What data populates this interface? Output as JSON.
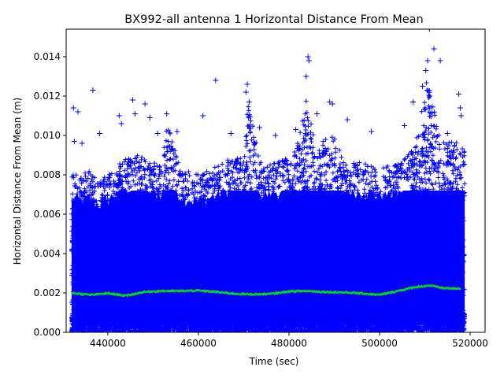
{
  "chart_data": {
    "type": "scatter",
    "title": "BX992-all antenna 1 Horizontal Distance From Mean",
    "xlabel": "Time (sec)",
    "ylabel": "Horizontal Distance From Mean (m)",
    "xlim": [
      430800,
      523300
    ],
    "ylim": [
      0.0,
      0.0154
    ],
    "x_ticks": [
      440000,
      460000,
      480000,
      500000,
      520000
    ],
    "x_tick_labels": [
      "440000",
      "460000",
      "480000",
      "500000",
      "520000"
    ],
    "y_ticks": [
      0.0,
      0.002,
      0.004,
      0.006,
      0.008,
      0.01,
      0.012,
      0.014
    ],
    "y_tick_labels": [
      "0.000",
      "0.002",
      "0.004",
      "0.006",
      "0.008",
      "0.010",
      "0.012",
      "0.014"
    ],
    "grid": false,
    "legend": "none",
    "series": [
      {
        "marker": "plus",
        "color": "#0000ff",
        "x_range": [
          432000,
          518800
        ],
        "envelope": {
          "x": [
            432000,
            434000,
            436000,
            438000,
            440000,
            443000,
            446000,
            449000,
            452000,
            453000,
            456000,
            460000,
            463000,
            466000,
            470000,
            471000,
            474000,
            478000,
            481000,
            484000,
            486000,
            489000,
            492000,
            496000,
            500000,
            504000,
            507000,
            509000,
            510500,
            511500,
            514000,
            516000,
            518800
          ],
          "y": [
            0.0082,
            0.008,
            0.0082,
            0.0078,
            0.0081,
            0.0087,
            0.0091,
            0.0087,
            0.0085,
            0.0108,
            0.0083,
            0.008,
            0.0083,
            0.0087,
            0.0092,
            0.0117,
            0.0084,
            0.0087,
            0.009,
            0.012,
            0.0092,
            0.0104,
            0.0088,
            0.0086,
            0.0084,
            0.0086,
            0.0092,
            0.0108,
            0.013,
            0.0118,
            0.0097,
            0.0098,
            0.0093
          ]
        },
        "outliers": [
          [
            432400,
            0.0114
          ],
          [
            432600,
            0.0097
          ],
          [
            433400,
            0.0112
          ],
          [
            434300,
            0.0096
          ],
          [
            436700,
            0.0123
          ],
          [
            438200,
            0.0101
          ],
          [
            442500,
            0.011
          ],
          [
            443000,
            0.0106
          ],
          [
            445500,
            0.0118
          ],
          [
            446000,
            0.0111
          ],
          [
            448200,
            0.0116
          ],
          [
            449300,
            0.0109
          ],
          [
            451000,
            0.0101
          ],
          [
            453000,
            0.0111
          ],
          [
            455300,
            0.0102
          ],
          [
            461000,
            0.011
          ],
          [
            463800,
            0.0128
          ],
          [
            467200,
            0.0101
          ],
          [
            470500,
            0.0122
          ],
          [
            470800,
            0.0126
          ],
          [
            471200,
            0.0117
          ],
          [
            473500,
            0.0104
          ],
          [
            477000,
            0.01
          ],
          [
            481500,
            0.0103
          ],
          [
            483800,
            0.013
          ],
          [
            484200,
            0.014
          ],
          [
            484400,
            0.0138
          ],
          [
            486200,
            0.0111
          ],
          [
            489000,
            0.0117
          ],
          [
            489600,
            0.0116
          ],
          [
            492900,
            0.0108
          ],
          [
            498200,
            0.0102
          ],
          [
            505500,
            0.0105
          ],
          [
            507400,
            0.0117
          ],
          [
            509500,
            0.0125
          ],
          [
            510200,
            0.0133
          ],
          [
            510600,
            0.0138
          ],
          [
            511000,
            0.0154
          ],
          [
            512000,
            0.0144
          ],
          [
            513400,
            0.0138
          ],
          [
            515000,
            0.0101
          ],
          [
            517500,
            0.0121
          ],
          [
            517800,
            0.0114
          ],
          [
            518000,
            0.011
          ]
        ]
      },
      {
        "marker": "line",
        "color": "#00e000",
        "x": [
          432000,
          436000,
          440000,
          444000,
          448000,
          452000,
          456000,
          460000,
          464000,
          468000,
          472000,
          476000,
          480000,
          484000,
          488000,
          492000,
          496000,
          500000,
          504000,
          508000,
          511000,
          514000,
          518000
        ],
        "y": [
          0.002,
          0.0019,
          0.00198,
          0.00186,
          0.00205,
          0.0021,
          0.0021,
          0.00212,
          0.00205,
          0.00196,
          0.00193,
          0.00195,
          0.00208,
          0.0021,
          0.00205,
          0.00203,
          0.00198,
          0.0019,
          0.0021,
          0.0023,
          0.00238,
          0.00225,
          0.0022
        ]
      }
    ]
  }
}
